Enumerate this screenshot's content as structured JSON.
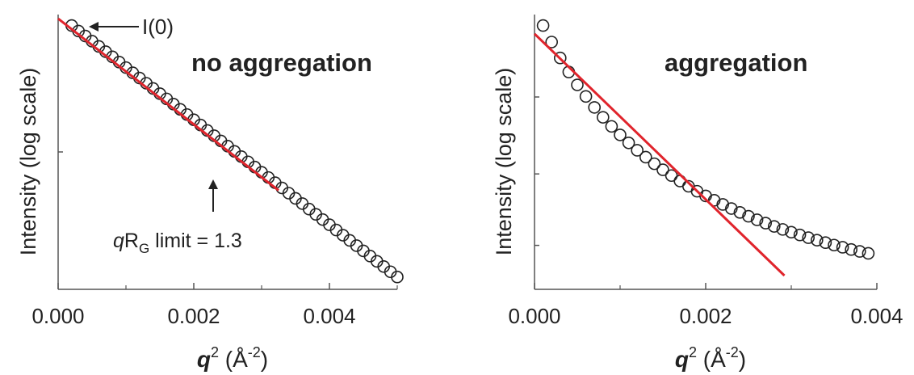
{
  "colors": {
    "axis": "#555555",
    "fit": "#e0242c",
    "marker": "#222222",
    "text": "#222222"
  },
  "chart_data": [
    {
      "type": "scatter",
      "panel": "left",
      "annotation_main": "no aggregation",
      "annotation_i0": "I(0)",
      "annotation_limit": {
        "q": "q",
        "r": "R",
        "sub": "G",
        "rest": " limit = 1.3"
      },
      "xlabel": {
        "q": "q",
        "sup1": "2",
        "mid": " (Å",
        "sup2": "-2",
        "end": ")"
      },
      "ylabel": "Intensity (log scale)",
      "xlim": [
        0,
        0.005
      ],
      "ylim": [
        0,
        1
      ],
      "y_scale": "log",
      "xticks": [
        0,
        0.002,
        0.004
      ],
      "xtick_labels": [
        "0.000",
        "0.002",
        "0.004"
      ],
      "x_minor": [
        0.001,
        0.003,
        0.005
      ],
      "y_ticks": [
        0.5
      ],
      "grid": false,
      "series": [
        {
          "kind": "points",
          "x": [
            0.0002,
            0.0003,
            0.0004,
            0.0005,
            0.0006,
            0.0007,
            0.0008,
            0.0009,
            0.001,
            0.0011,
            0.0012,
            0.0013,
            0.0014,
            0.0015,
            0.0016,
            0.0017,
            0.0018,
            0.0019,
            0.002,
            0.0021,
            0.0022,
            0.0023,
            0.0024,
            0.0025,
            0.0026,
            0.0027,
            0.0028,
            0.0029,
            0.003,
            0.0031,
            0.0032,
            0.0033,
            0.0034,
            0.0035,
            0.0036,
            0.0037,
            0.0038,
            0.0039,
            0.004,
            0.0041,
            0.0042,
            0.0043,
            0.0044,
            0.0045,
            0.0046,
            0.0047,
            0.0048,
            0.0049,
            0.005
          ],
          "y": [
            0.96,
            0.94,
            0.922,
            0.903,
            0.884,
            0.865,
            0.846,
            0.827,
            0.807,
            0.788,
            0.769,
            0.75,
            0.731,
            0.712,
            0.693,
            0.674,
            0.655,
            0.636,
            0.617,
            0.598,
            0.578,
            0.559,
            0.54,
            0.521,
            0.502,
            0.483,
            0.464,
            0.445,
            0.426,
            0.407,
            0.388,
            0.369,
            0.35,
            0.331,
            0.312,
            0.292,
            0.273,
            0.254,
            0.235,
            0.216,
            0.197,
            0.178,
            0.159,
            0.14,
            0.121,
            0.102,
            0.083,
            0.064,
            0.045
          ]
        },
        {
          "kind": "fit",
          "x": [
            0,
            0.00325
          ],
          "y": [
            0.985,
            0.36
          ]
        }
      ]
    },
    {
      "type": "scatter",
      "panel": "right",
      "annotation_main": "aggregation",
      "xlabel": {
        "q": "q",
        "sup1": "2",
        "mid": " (Å",
        "sup2": "-2",
        "end": ")"
      },
      "ylabel": "Intensity (log scale)",
      "xlim": [
        0,
        0.004
      ],
      "ylim": [
        0,
        1
      ],
      "y_scale": "log",
      "xticks": [
        0,
        0.002,
        0.004
      ],
      "xtick_labels": [
        "0.000",
        "0.002",
        "0.004"
      ],
      "x_minor": [
        0.001,
        0.003
      ],
      "y_ticks": [
        0.7,
        0.42,
        0.16
      ],
      "grid": false,
      "series": [
        {
          "kind": "points",
          "x": [
            0.0001,
            0.0002,
            0.0003,
            0.0004,
            0.0005,
            0.0006,
            0.0007,
            0.0008,
            0.0009,
            0.001,
            0.0011,
            0.0012,
            0.0013,
            0.0014,
            0.0015,
            0.0016,
            0.0017,
            0.0018,
            0.0019,
            0.002,
            0.0021,
            0.0022,
            0.0023,
            0.0024,
            0.0025,
            0.0026,
            0.0027,
            0.0028,
            0.0029,
            0.003,
            0.0031,
            0.0032,
            0.0033,
            0.0034,
            0.0035,
            0.0036,
            0.0037,
            0.0038,
            0.0039
          ],
          "y": [
            0.96,
            0.9,
            0.842,
            0.791,
            0.744,
            0.702,
            0.662,
            0.626,
            0.593,
            0.562,
            0.533,
            0.506,
            0.481,
            0.457,
            0.435,
            0.414,
            0.394,
            0.375,
            0.357,
            0.34,
            0.324,
            0.309,
            0.294,
            0.28,
            0.266,
            0.253,
            0.241,
            0.229,
            0.218,
            0.208,
            0.198,
            0.188,
            0.179,
            0.17,
            0.161,
            0.153,
            0.145,
            0.138,
            0.131
          ]
        },
        {
          "kind": "fit",
          "x": [
            0,
            0.00292
          ],
          "y": [
            0.93,
            0.05
          ]
        }
      ]
    }
  ]
}
